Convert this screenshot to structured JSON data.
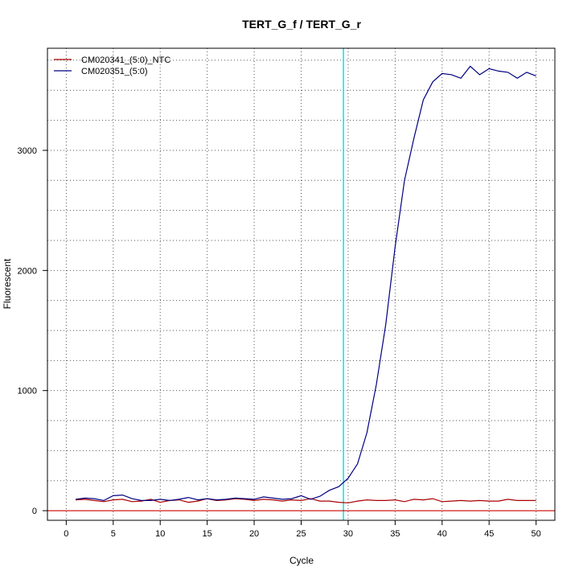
{
  "chart_data": {
    "type": "line",
    "title": "TERT_G_f / TERT_G_r",
    "xlabel": "Cycle",
    "ylabel": "Fluorescent",
    "xlim": [
      -2,
      52
    ],
    "ylim": [
      -80,
      3850
    ],
    "x_ticks": [
      0,
      5,
      10,
      15,
      20,
      25,
      30,
      35,
      40,
      45,
      50
    ],
    "y_ticks": [
      0,
      1000,
      2000,
      3000
    ],
    "grid": true,
    "grid_x_positions": [
      0,
      5,
      10,
      15,
      20,
      25,
      30,
      35,
      40,
      45,
      50
    ],
    "grid_y_positions": [
      0,
      250,
      500,
      750,
      1000,
      1250,
      1500,
      1750,
      2000,
      2250,
      2500,
      2750,
      3000,
      3250,
      3500,
      3750
    ],
    "legend_position": "top-left",
    "threshold_cycle": 29.5,
    "threshold_color": "#00e5ee",
    "baseline_value": 0,
    "baseline_color": "#cc0000",
    "series": [
      {
        "name": "CM020341_(5:0)_NTC",
        "color": "#aa0000",
        "x": [
          1,
          2,
          3,
          4,
          5,
          6,
          7,
          8,
          9,
          10,
          11,
          12,
          13,
          14,
          15,
          16,
          17,
          18,
          19,
          20,
          21,
          22,
          23,
          24,
          25,
          26,
          27,
          28,
          29,
          30,
          31,
          32,
          33,
          34,
          35,
          36,
          37,
          38,
          39,
          40,
          41,
          42,
          43,
          44,
          45,
          46,
          47,
          48,
          49,
          50
        ],
        "values": [
          90,
          95,
          85,
          75,
          90,
          95,
          75,
          80,
          95,
          70,
          85,
          90,
          70,
          80,
          100,
          85,
          90,
          100,
          95,
          85,
          95,
          90,
          80,
          90,
          85,
          100,
          80,
          80,
          70,
          65,
          80,
          90,
          85,
          85,
          90,
          75,
          95,
          90,
          100,
          75,
          80,
          85,
          80,
          85,
          80,
          80,
          95,
          85,
          85,
          85
        ]
      },
      {
        "name": "CM020351_(5:0)",
        "color": "#000080",
        "x": [
          1,
          2,
          3,
          4,
          5,
          6,
          7,
          8,
          9,
          10,
          11,
          12,
          13,
          14,
          15,
          16,
          17,
          18,
          19,
          20,
          21,
          22,
          23,
          24,
          25,
          26,
          27,
          28,
          29,
          30,
          31,
          32,
          33,
          34,
          35,
          36,
          37,
          38,
          39,
          40,
          41,
          42,
          43,
          44,
          45,
          46,
          47,
          48,
          49,
          50
        ],
        "values": [
          95,
          105,
          100,
          85,
          125,
          130,
          100,
          85,
          85,
          95,
          85,
          95,
          110,
          90,
          100,
          90,
          95,
          105,
          100,
          95,
          115,
          105,
          95,
          100,
          125,
          95,
          120,
          170,
          200,
          270,
          390,
          650,
          1050,
          1550,
          2200,
          2750,
          3100,
          3420,
          3570,
          3640,
          3630,
          3600,
          3700,
          3630,
          3680,
          3660,
          3650,
          3600,
          3650,
          3620
        ]
      }
    ]
  }
}
